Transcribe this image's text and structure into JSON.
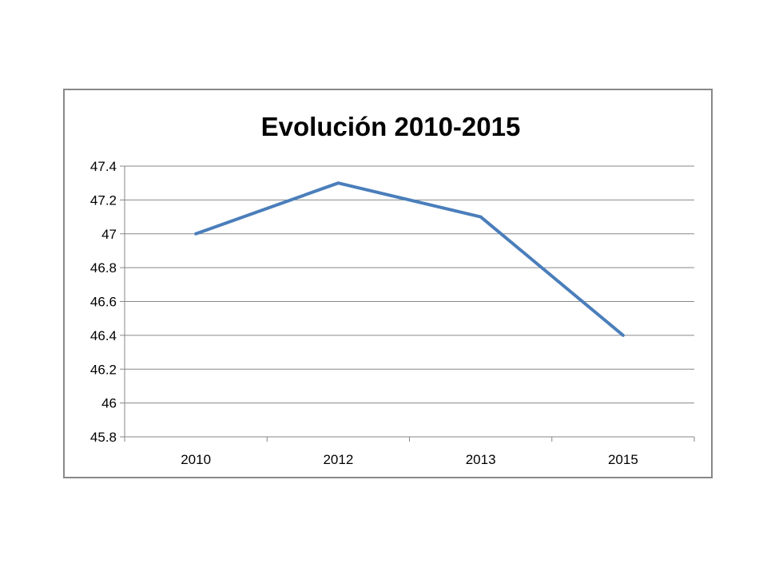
{
  "chart_data": {
    "type": "line",
    "title": "Evolución 2010-2015",
    "xlabel": "",
    "ylabel": "",
    "categories": [
      "2010",
      "2012",
      "2013",
      "2015"
    ],
    "series": [
      {
        "values": [
          47.0,
          47.3,
          47.1,
          46.4
        ],
        "color": "#4a7ebb"
      }
    ],
    "ylim": [
      45.8,
      47.4
    ],
    "yticks": [
      45.8,
      46,
      46.2,
      46.4,
      46.6,
      46.8,
      47,
      47.2,
      47.4
    ],
    "ytick_labels": [
      "45.8",
      "46",
      "46.2",
      "46.4",
      "46.6",
      "46.8",
      "47",
      "47.2",
      "47.4"
    ],
    "grid": true,
    "legend": "none",
    "gridline_color": "#878787",
    "axis_color": "#878787"
  }
}
